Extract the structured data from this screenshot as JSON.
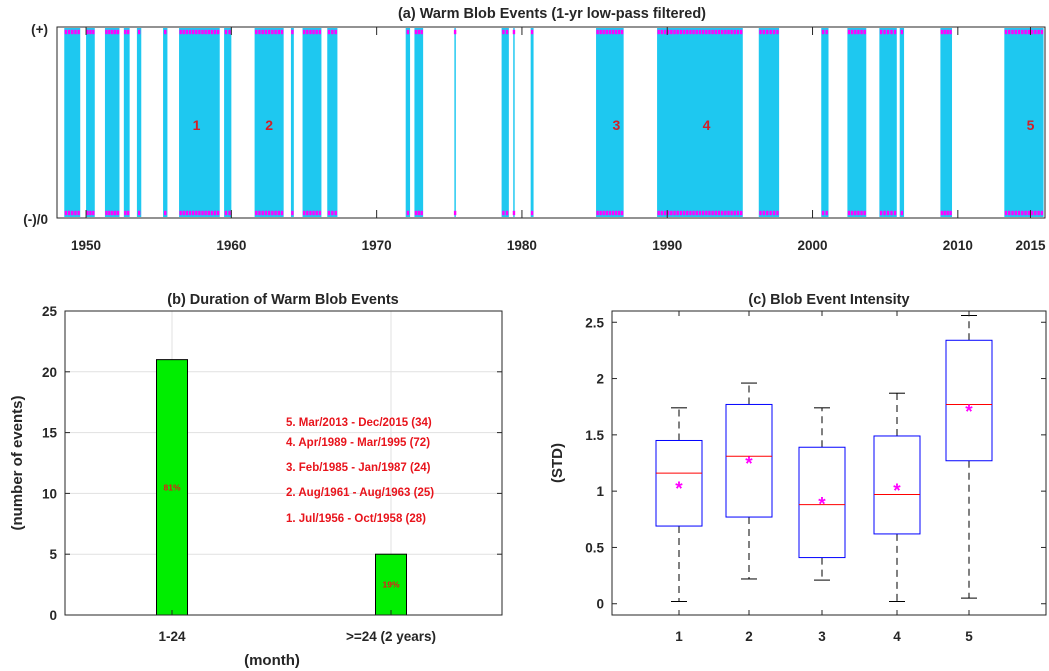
{
  "chart_data": [
    {
      "panel": "a",
      "type": "bar",
      "title": "(a) Warm Blob Events (1-yr low-pass filtered)",
      "xlim": [
        1948.0,
        2016.0
      ],
      "xticks": [
        "1950",
        "1960",
        "1970",
        "1980",
        "1990",
        "2000",
        "2010",
        "2015"
      ],
      "yticks": [
        "(+)",
        "(-)/0"
      ],
      "event_labels": [
        {
          "text": "1",
          "x": 1957.6
        },
        {
          "text": "2",
          "x": 1962.6
        },
        {
          "text": "3",
          "x": 1986.5
        },
        {
          "text": "4",
          "x": 1992.7
        },
        {
          "text": "5",
          "x": 2015.0
        }
      ],
      "warm_intervals": [
        [
          1948.5,
          1949.6
        ],
        [
          1950.0,
          1950.6
        ],
        [
          1951.3,
          1952.3
        ],
        [
          1952.6,
          1953.0
        ],
        [
          1953.5,
          1953.8
        ],
        [
          1955.3,
          1955.6
        ],
        [
          1956.4,
          1959.2
        ],
        [
          1959.5,
          1960.0
        ],
        [
          1961.6,
          1963.6
        ],
        [
          1964.1,
          1964.3
        ],
        [
          1964.9,
          1966.2
        ],
        [
          1966.6,
          1967.3
        ],
        [
          1972.0,
          1972.3
        ],
        [
          1972.6,
          1973.2
        ],
        [
          1975.35,
          1975.45
        ],
        [
          1978.6,
          1979.1
        ],
        [
          1979.4,
          1979.5
        ],
        [
          1980.6,
          1980.8
        ],
        [
          1985.1,
          1987.0
        ],
        [
          1989.3,
          1995.2
        ],
        [
          1996.3,
          1997.7
        ],
        [
          2000.6,
          2001.1
        ],
        [
          2002.4,
          2003.7
        ],
        [
          2004.6,
          2005.8
        ],
        [
          2006.0,
          2006.3
        ],
        [
          2008.8,
          2009.6
        ],
        [
          2013.2,
          2015.9
        ]
      ],
      "colors": {
        "bar": "#1ec8f0",
        "marker": "#ff00ff",
        "label": "#d41f26"
      }
    },
    {
      "panel": "b",
      "type": "bar",
      "title": "(b) Duration of Warm Blob Events",
      "categories": [
        "1-24",
        ">=24 (2 years)"
      ],
      "values": [
        21,
        5
      ],
      "bar_labels": [
        "81%",
        "19%"
      ],
      "xlabel": "(month)",
      "ylabel": "(number of events)",
      "ylim": [
        0,
        25
      ],
      "yticks": [
        "0",
        "5",
        "10",
        "15",
        "20",
        "25"
      ],
      "grid": true,
      "annotations": [
        "5. Mar/2013 - Dec/2015 (34)",
        "4. Apr/1989 - Mar/1995 (72)",
        "3. Feb/1985 - Jan/1987 (24)",
        "2. Aug/1961 - Aug/1963 (25)",
        "1. Jul/1956 - Oct/1958 (28)"
      ],
      "colors": {
        "bar": "#00ee00",
        "annotation": "#e8141c"
      }
    },
    {
      "panel": "c",
      "type": "box",
      "title": "(c) Blob Event Intensity",
      "categories": [
        "1",
        "2",
        "3",
        "4",
        "5"
      ],
      "ylabel": "(STD)",
      "ylim": [
        -0.1,
        2.6
      ],
      "yticks": [
        "0",
        "0.5",
        "1",
        "1.5",
        "2",
        "2.5"
      ],
      "boxes": [
        {
          "whisker_low": 0.02,
          "q1": 0.69,
          "median": 1.16,
          "q3": 1.45,
          "whisker_high": 1.74,
          "mean": 1.03
        },
        {
          "whisker_low": 0.22,
          "q1": 0.77,
          "median": 1.31,
          "q3": 1.77,
          "whisker_high": 1.96,
          "mean": 1.25
        },
        {
          "whisker_low": 0.21,
          "q1": 0.41,
          "median": 0.88,
          "q3": 1.39,
          "whisker_high": 1.74,
          "mean": 0.89
        },
        {
          "whisker_low": 0.02,
          "q1": 0.62,
          "median": 0.97,
          "q3": 1.49,
          "whisker_high": 1.87,
          "mean": 1.01
        },
        {
          "whisker_low": 0.05,
          "q1": 1.27,
          "median": 1.77,
          "q3": 2.34,
          "whisker_high": 2.56,
          "mean": 1.71
        }
      ],
      "colors": {
        "box": "#0000ff",
        "median": "#ff0000",
        "mean": "#ff00ff",
        "whisker": "#000000"
      }
    }
  ]
}
